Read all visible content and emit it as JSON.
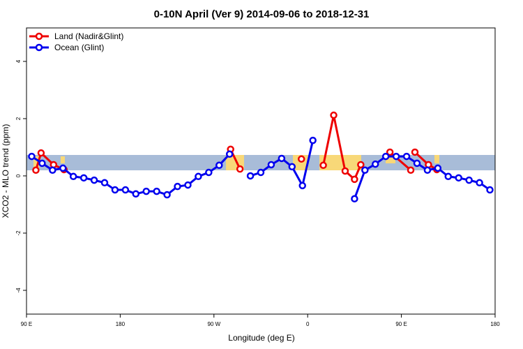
{
  "chart_data": {
    "type": "line",
    "title": "0-10N April (Ver 9)   2014-09-06 to 2018-12-31",
    "x_label": "Longitude (deg E)",
    "y_label": "XCO2 - MLO trend (ppm)",
    "xlim": [
      90,
      540
    ],
    "xticks": [
      {
        "value": 90,
        "label": "90 E"
      },
      {
        "value": 180,
        "label": "180"
      },
      {
        "value": 270,
        "label": "90 W"
      },
      {
        "value": 360,
        "label": "0"
      },
      {
        "value": 450,
        "label": "90 E"
      },
      {
        "value": 540,
        "label": "180"
      }
    ],
    "ylim": [
      -4.83,
      5.17
    ],
    "yticks": [
      -4,
      -2,
      0,
      2,
      4
    ],
    "legend": "top-left",
    "series": [
      {
        "name": "Land (Nadir&Glint)",
        "color": "#ee0000",
        "x": [
          99,
          104,
          116,
          126,
          null,
          286,
          295,
          null,
          354,
          null,
          375,
          385,
          396,
          405,
          411,
          null,
          439,
          459,
          null,
          463,
          476,
          484
        ],
        "values": [
          0.2,
          0.8,
          0.39,
          0.22,
          null,
          0.93,
          0.24,
          null,
          0.59,
          null,
          0.37,
          2.12,
          0.17,
          -0.12,
          0.39,
          null,
          0.83,
          0.2,
          null,
          0.83,
          0.39,
          0.22
        ]
      },
      {
        "name": "Ocean (Glint)",
        "color": "#0000ee",
        "x": [
          95,
          105,
          115,
          125,
          135,
          145,
          155,
          165,
          175,
          185,
          195,
          205,
          215,
          225,
          235,
          245,
          255,
          265,
          275,
          285,
          295,
          305,
          315,
          325,
          335,
          345,
          355,
          365,
          375,
          385,
          395,
          405,
          415,
          425,
          435,
          445,
          455,
          465,
          475,
          485,
          495,
          505,
          515,
          525,
          535
        ],
        "values": [
          0.68,
          0.44,
          0.2,
          0.27,
          -0.02,
          -0.07,
          -0.15,
          -0.24,
          -0.49,
          -0.49,
          -0.63,
          -0.54,
          -0.54,
          -0.66,
          -0.37,
          -0.32,
          -0.02,
          0.12,
          0.37,
          0.76,
          null,
          0,
          0.12,
          0.39,
          0.61,
          0.32,
          -0.34,
          1.24,
          null,
          null,
          null,
          -0.8,
          0.2,
          0.41,
          0.68,
          0.68,
          0.68,
          0.44,
          0.2,
          0.27,
          -0.02,
          -0.07,
          -0.15,
          -0.24,
          -0.49
        ]
      }
    ]
  }
}
